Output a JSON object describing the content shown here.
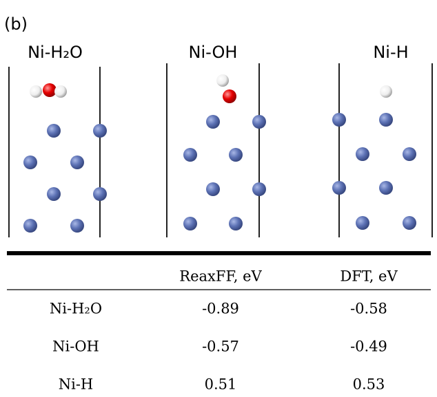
{
  "panel_label": "(b)",
  "structures": [
    {
      "title": "Ni-H₂O"
    },
    {
      "title": "Ni-OH"
    },
    {
      "title": "Ni-H"
    }
  ],
  "table": {
    "columns": [
      "ReaxFF, eV",
      "DFT, eV"
    ],
    "rows": [
      {
        "label": "Ni-H₂O",
        "values": [
          -0.89,
          -0.58
        ]
      },
      {
        "label": "Ni-OH",
        "values": [
          -0.57,
          -0.49
        ]
      },
      {
        "label": "Ni-H",
        "values": [
          0.51,
          0.53
        ]
      }
    ]
  }
}
